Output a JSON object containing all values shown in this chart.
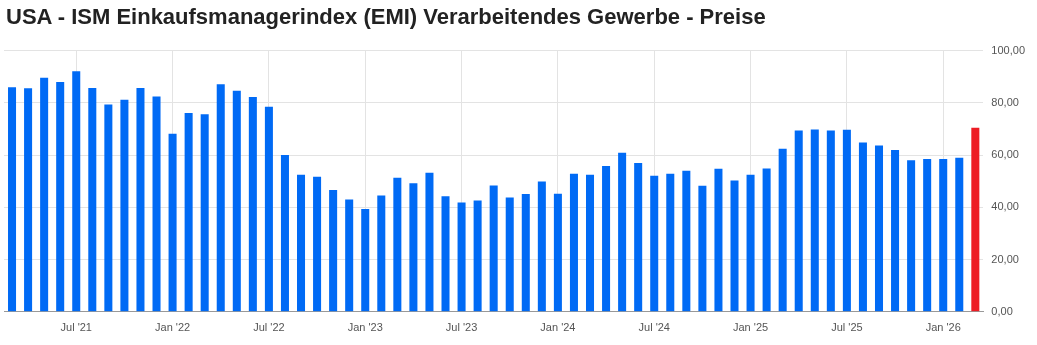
{
  "chart_data": {
    "type": "bar",
    "title": "USA - ISM Einkaufsmanagerindex (EMI) Verarbeitendes Gewerbe - Preise",
    "categories": [
      null,
      null,
      null,
      null,
      "Jul '21",
      null,
      null,
      null,
      null,
      null,
      "Jan '22",
      null,
      null,
      null,
      null,
      null,
      "Jul '22",
      null,
      null,
      null,
      null,
      null,
      "Jan '23",
      null,
      null,
      null,
      null,
      null,
      "Jul '23",
      null,
      null,
      null,
      null,
      null,
      "Jan '24",
      null,
      null,
      null,
      null,
      null,
      "Jul '24",
      null,
      null,
      null,
      null,
      null,
      "Jan '25",
      null,
      null,
      null,
      null,
      null,
      "Jul '25",
      null,
      null,
      null,
      null,
      null,
      "Jan '26",
      null,
      null
    ],
    "values": [
      86.0,
      85.6,
      89.6,
      88.0,
      92.1,
      85.7,
      79.4,
      81.2,
      85.7,
      82.4,
      68.2,
      76.1,
      75.6,
      87.1,
      84.6,
      82.2,
      78.5,
      60.0,
      52.5,
      51.7,
      46.6,
      43.0,
      39.4,
      44.5,
      51.3,
      49.2,
      53.2,
      44.2,
      41.8,
      42.6,
      48.4,
      43.8,
      45.1,
      49.9,
      45.2,
      52.9,
      52.5,
      55.8,
      60.9,
      57.0,
      52.1,
      52.9,
      54.0,
      48.3,
      54.8,
      50.3,
      52.5,
      54.9,
      62.4,
      69.4,
      69.8,
      69.4,
      69.7,
      64.8,
      63.7,
      61.9,
      58.0,
      58.5,
      58.5,
      59.0,
      70.5
    ],
    "colors": [
      "#006af5",
      "#006af5",
      "#006af5",
      "#006af5",
      "#006af5",
      "#006af5",
      "#006af5",
      "#006af5",
      "#006af5",
      "#006af5",
      "#006af5",
      "#006af5",
      "#006af5",
      "#006af5",
      "#006af5",
      "#006af5",
      "#006af5",
      "#006af5",
      "#006af5",
      "#006af5",
      "#006af5",
      "#006af5",
      "#006af5",
      "#006af5",
      "#006af5",
      "#006af5",
      "#006af5",
      "#006af5",
      "#006af5",
      "#006af5",
      "#006af5",
      "#006af5",
      "#006af5",
      "#006af5",
      "#006af5",
      "#006af5",
      "#006af5",
      "#006af5",
      "#006af5",
      "#006af5",
      "#006af5",
      "#006af5",
      "#006af5",
      "#006af5",
      "#006af5",
      "#006af5",
      "#006af5",
      "#006af5",
      "#006af5",
      "#006af5",
      "#006af5",
      "#006af5",
      "#006af5",
      "#006af5",
      "#006af5",
      "#006af5",
      "#006af5",
      "#006af5",
      "#006af5",
      "#006af5",
      "#ed1c24"
    ],
    "ylim": [
      0,
      100
    ],
    "yticks": [
      {
        "value": 0,
        "label": "0,00"
      },
      {
        "value": 20,
        "label": "20,00"
      },
      {
        "value": 40,
        "label": "40,00"
      },
      {
        "value": 60,
        "label": "60,00"
      },
      {
        "value": 80,
        "label": "80,00"
      },
      {
        "value": 100,
        "label": "100,00"
      }
    ],
    "grid": true,
    "legend": false
  }
}
